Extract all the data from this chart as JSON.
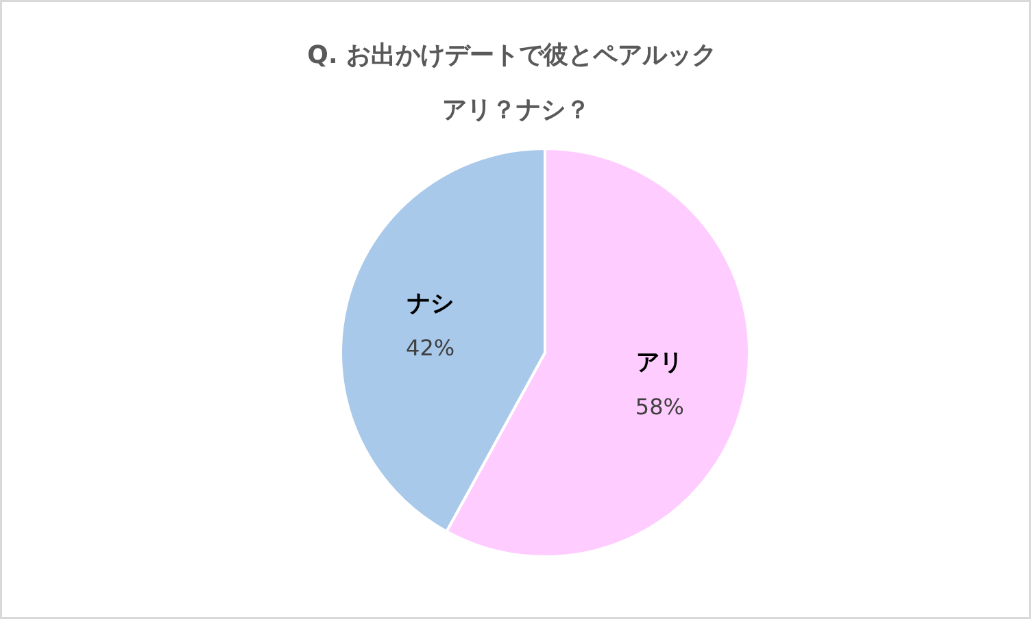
{
  "chart_data": {
    "type": "pie",
    "title": "Q.  お出かけデートで彼とペアルック",
    "subtitle": "アリ？ナシ？",
    "categories": [
      "アリ",
      "ナシ"
    ],
    "values": [
      58,
      42
    ],
    "value_labels": [
      "58%",
      "42%"
    ],
    "colors": [
      "#ffccff",
      "#a9c9ea"
    ]
  }
}
